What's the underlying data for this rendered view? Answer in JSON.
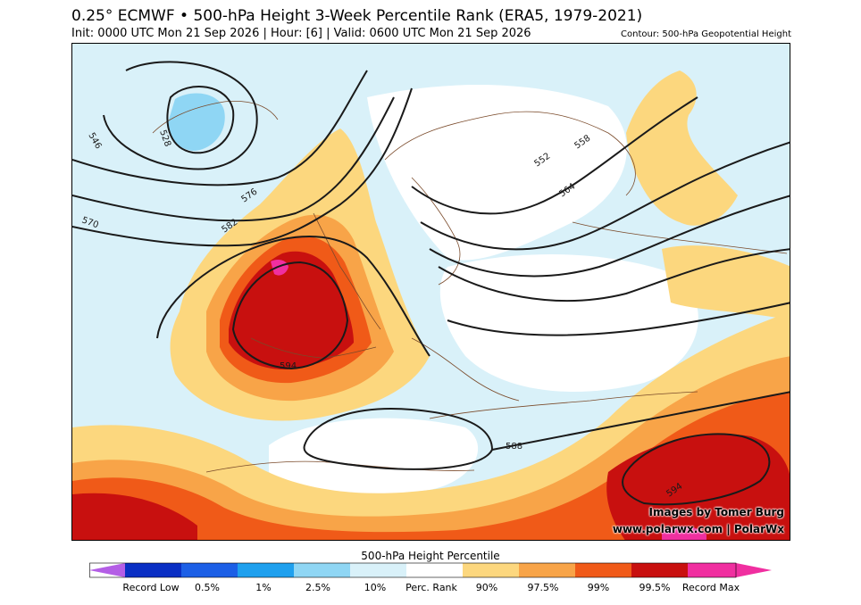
{
  "header": {
    "title": "0.25° ECMWF • 500-hPa Height 3-Week Percentile Rank (ERA5, 1979-2021)",
    "subtitle": "Init: 0000 UTC Mon 21 Sep 2026 | Hour: [6] | Valid: 0600 UTC Mon 21 Sep 2026",
    "contour_note": "Contour: 500-hPa Geopotential Height"
  },
  "map": {
    "contour_labels": [
      "528",
      "546",
      "570",
      "576",
      "582",
      "594",
      "552",
      "558",
      "564",
      "588",
      "594"
    ]
  },
  "credits": {
    "line1": "Images by Tomer Burg",
    "line2": "www.polarwx.com | PolarWx"
  },
  "colorbar": {
    "title": "500-hPa Height Percentile",
    "labels": [
      "Record Low",
      "0.5%",
      "1%",
      "2.5%",
      "10%",
      "Perc. Rank",
      "90%",
      "97.5%",
      "99%",
      "99.5%",
      "Record Max"
    ],
    "colors": {
      "record_low": "#b45ee6",
      "p0_5": "#0a2fc4",
      "p1": "#1c5fe6",
      "p2_5": "#1fa0ee",
      "p10": "#8fd6f4",
      "neutral_low": "#d9f1f9",
      "neutral_high": "#ffffff",
      "p90": "#fcd77e",
      "p97_5": "#f8a448",
      "p99": "#f05a18",
      "p99_5": "#c8100f",
      "record_max": "#f02fa0"
    }
  }
}
